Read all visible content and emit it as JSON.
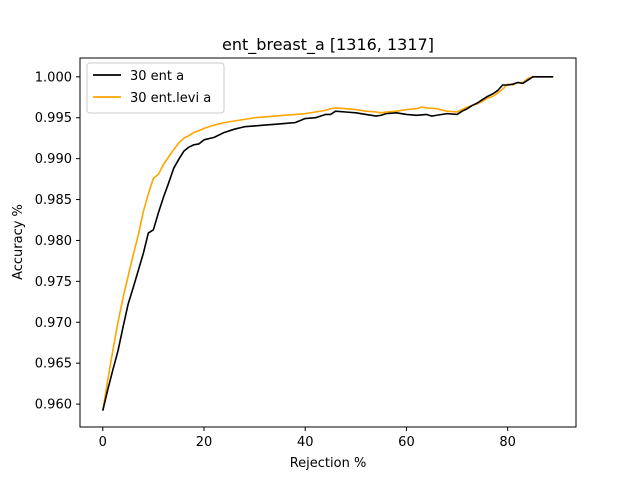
{
  "chart_data": {
    "type": "line",
    "title": "ent_breast_a  [1316, 1317]",
    "xlabel": "Rejection %",
    "ylabel": "Accuracy %",
    "xlim": [
      -4.5,
      93.5
    ],
    "ylim": [
      0.9572,
      1.0023
    ],
    "xticks": [
      0,
      20,
      40,
      60,
      80
    ],
    "xtick_labels": [
      "0",
      "20",
      "40",
      "60",
      "80"
    ],
    "yticks": [
      0.96,
      0.965,
      0.97,
      0.975,
      0.98,
      0.985,
      0.99,
      0.995,
      1.0
    ],
    "ytick_labels": [
      "0.960",
      "0.965",
      "0.970",
      "0.975",
      "0.980",
      "0.985",
      "0.990",
      "0.995",
      "1.000"
    ],
    "grid": false,
    "legend": "top-left",
    "series": [
      {
        "name": "30 ent a",
        "color": "#000000",
        "points": [
          [
            0,
            0.9592
          ],
          [
            1,
            0.9618
          ],
          [
            2,
            0.9642
          ],
          [
            3,
            0.9665
          ],
          [
            4,
            0.9694
          ],
          [
            5,
            0.9722
          ],
          [
            6,
            0.9742
          ],
          [
            7,
            0.9763
          ],
          [
            8,
            0.9784
          ],
          [
            9,
            0.9809
          ],
          [
            10,
            0.9813
          ],
          [
            11,
            0.9834
          ],
          [
            12,
            0.9853
          ],
          [
            13,
            0.987
          ],
          [
            14,
            0.9888
          ],
          [
            15,
            0.9899
          ],
          [
            16,
            0.9909
          ],
          [
            17,
            0.9914
          ],
          [
            18,
            0.9917
          ],
          [
            19,
            0.9918
          ],
          [
            20,
            0.9923
          ],
          [
            22,
            0.9926
          ],
          [
            24,
            0.9932
          ],
          [
            26,
            0.9936
          ],
          [
            28,
            0.9939
          ],
          [
            30,
            0.994
          ],
          [
            32,
            0.9941
          ],
          [
            34,
            0.9942
          ],
          [
            36,
            0.9943
          ],
          [
            38,
            0.9944
          ],
          [
            40,
            0.9949
          ],
          [
            42,
            0.995
          ],
          [
            44,
            0.9954
          ],
          [
            45,
            0.9954
          ],
          [
            46,
            0.9958
          ],
          [
            48,
            0.9957
          ],
          [
            50,
            0.9956
          ],
          [
            52,
            0.9954
          ],
          [
            54,
            0.9952
          ],
          [
            55,
            0.9953
          ],
          [
            56,
            0.9955
          ],
          [
            58,
            0.9956
          ],
          [
            60,
            0.9954
          ],
          [
            62,
            0.9953
          ],
          [
            64,
            0.9954
          ],
          [
            65,
            0.9952
          ],
          [
            66,
            0.9953
          ],
          [
            68,
            0.9955
          ],
          [
            70,
            0.9954
          ],
          [
            71,
            0.9958
          ],
          [
            72,
            0.9961
          ],
          [
            73,
            0.9965
          ],
          [
            74,
            0.9968
          ],
          [
            75,
            0.9972
          ],
          [
            76,
            0.9976
          ],
          [
            77,
            0.9979
          ],
          [
            78,
            0.9983
          ],
          [
            79,
            0.999
          ],
          [
            80,
            0.999
          ],
          [
            81,
            0.9991
          ],
          [
            82,
            0.9993
          ],
          [
            83,
            0.9992
          ],
          [
            84,
            0.9996
          ],
          [
            85,
            1.0
          ],
          [
            86,
            1.0
          ],
          [
            87,
            1.0
          ],
          [
            88,
            1.0
          ],
          [
            89,
            1.0
          ]
        ]
      },
      {
        "name": "30 ent.levi a",
        "color": "#ffa500",
        "points": [
          [
            0,
            0.9592
          ],
          [
            1,
            0.963
          ],
          [
            2,
            0.9666
          ],
          [
            3,
            0.97
          ],
          [
            4,
            0.973
          ],
          [
            5,
            0.9756
          ],
          [
            6,
            0.9782
          ],
          [
            7,
            0.9806
          ],
          [
            8,
            0.9835
          ],
          [
            9,
            0.9857
          ],
          [
            10,
            0.9876
          ],
          [
            11,
            0.9881
          ],
          [
            12,
            0.9893
          ],
          [
            13,
            0.9902
          ],
          [
            14,
            0.9911
          ],
          [
            15,
            0.9919
          ],
          [
            16,
            0.9925
          ],
          [
            17,
            0.9928
          ],
          [
            18,
            0.9932
          ],
          [
            19,
            0.9934
          ],
          [
            20,
            0.9937
          ],
          [
            22,
            0.9941
          ],
          [
            24,
            0.9944
          ],
          [
            26,
            0.9946
          ],
          [
            28,
            0.9948
          ],
          [
            30,
            0.995
          ],
          [
            32,
            0.9951
          ],
          [
            34,
            0.9952
          ],
          [
            36,
            0.9953
          ],
          [
            38,
            0.9954
          ],
          [
            40,
            0.9955
          ],
          [
            42,
            0.9957
          ],
          [
            44,
            0.9959
          ],
          [
            45,
            0.9961
          ],
          [
            46,
            0.9962
          ],
          [
            48,
            0.9961
          ],
          [
            50,
            0.996
          ],
          [
            52,
            0.9958
          ],
          [
            54,
            0.9957
          ],
          [
            55,
            0.9956
          ],
          [
            56,
            0.9957
          ],
          [
            58,
            0.9958
          ],
          [
            60,
            0.996
          ],
          [
            62,
            0.9961
          ],
          [
            63,
            0.9963
          ],
          [
            64,
            0.9962
          ],
          [
            66,
            0.9961
          ],
          [
            68,
            0.9958
          ],
          [
            70,
            0.9957
          ],
          [
            71,
            0.996
          ],
          [
            72,
            0.9963
          ],
          [
            73,
            0.9965
          ],
          [
            74,
            0.9967
          ],
          [
            75,
            0.997
          ],
          [
            76,
            0.9974
          ],
          [
            77,
            0.9976
          ],
          [
            78,
            0.998
          ],
          [
            79,
            0.9985
          ],
          [
            80,
            0.9991
          ],
          [
            81,
            0.999
          ],
          [
            82,
            0.9993
          ],
          [
            83,
            0.9993
          ],
          [
            84,
            0.9998
          ],
          [
            85,
            1.0
          ],
          [
            86,
            1.0
          ],
          [
            87,
            1.0
          ],
          [
            88,
            1.0
          ],
          [
            89,
            1.0
          ]
        ]
      }
    ]
  }
}
